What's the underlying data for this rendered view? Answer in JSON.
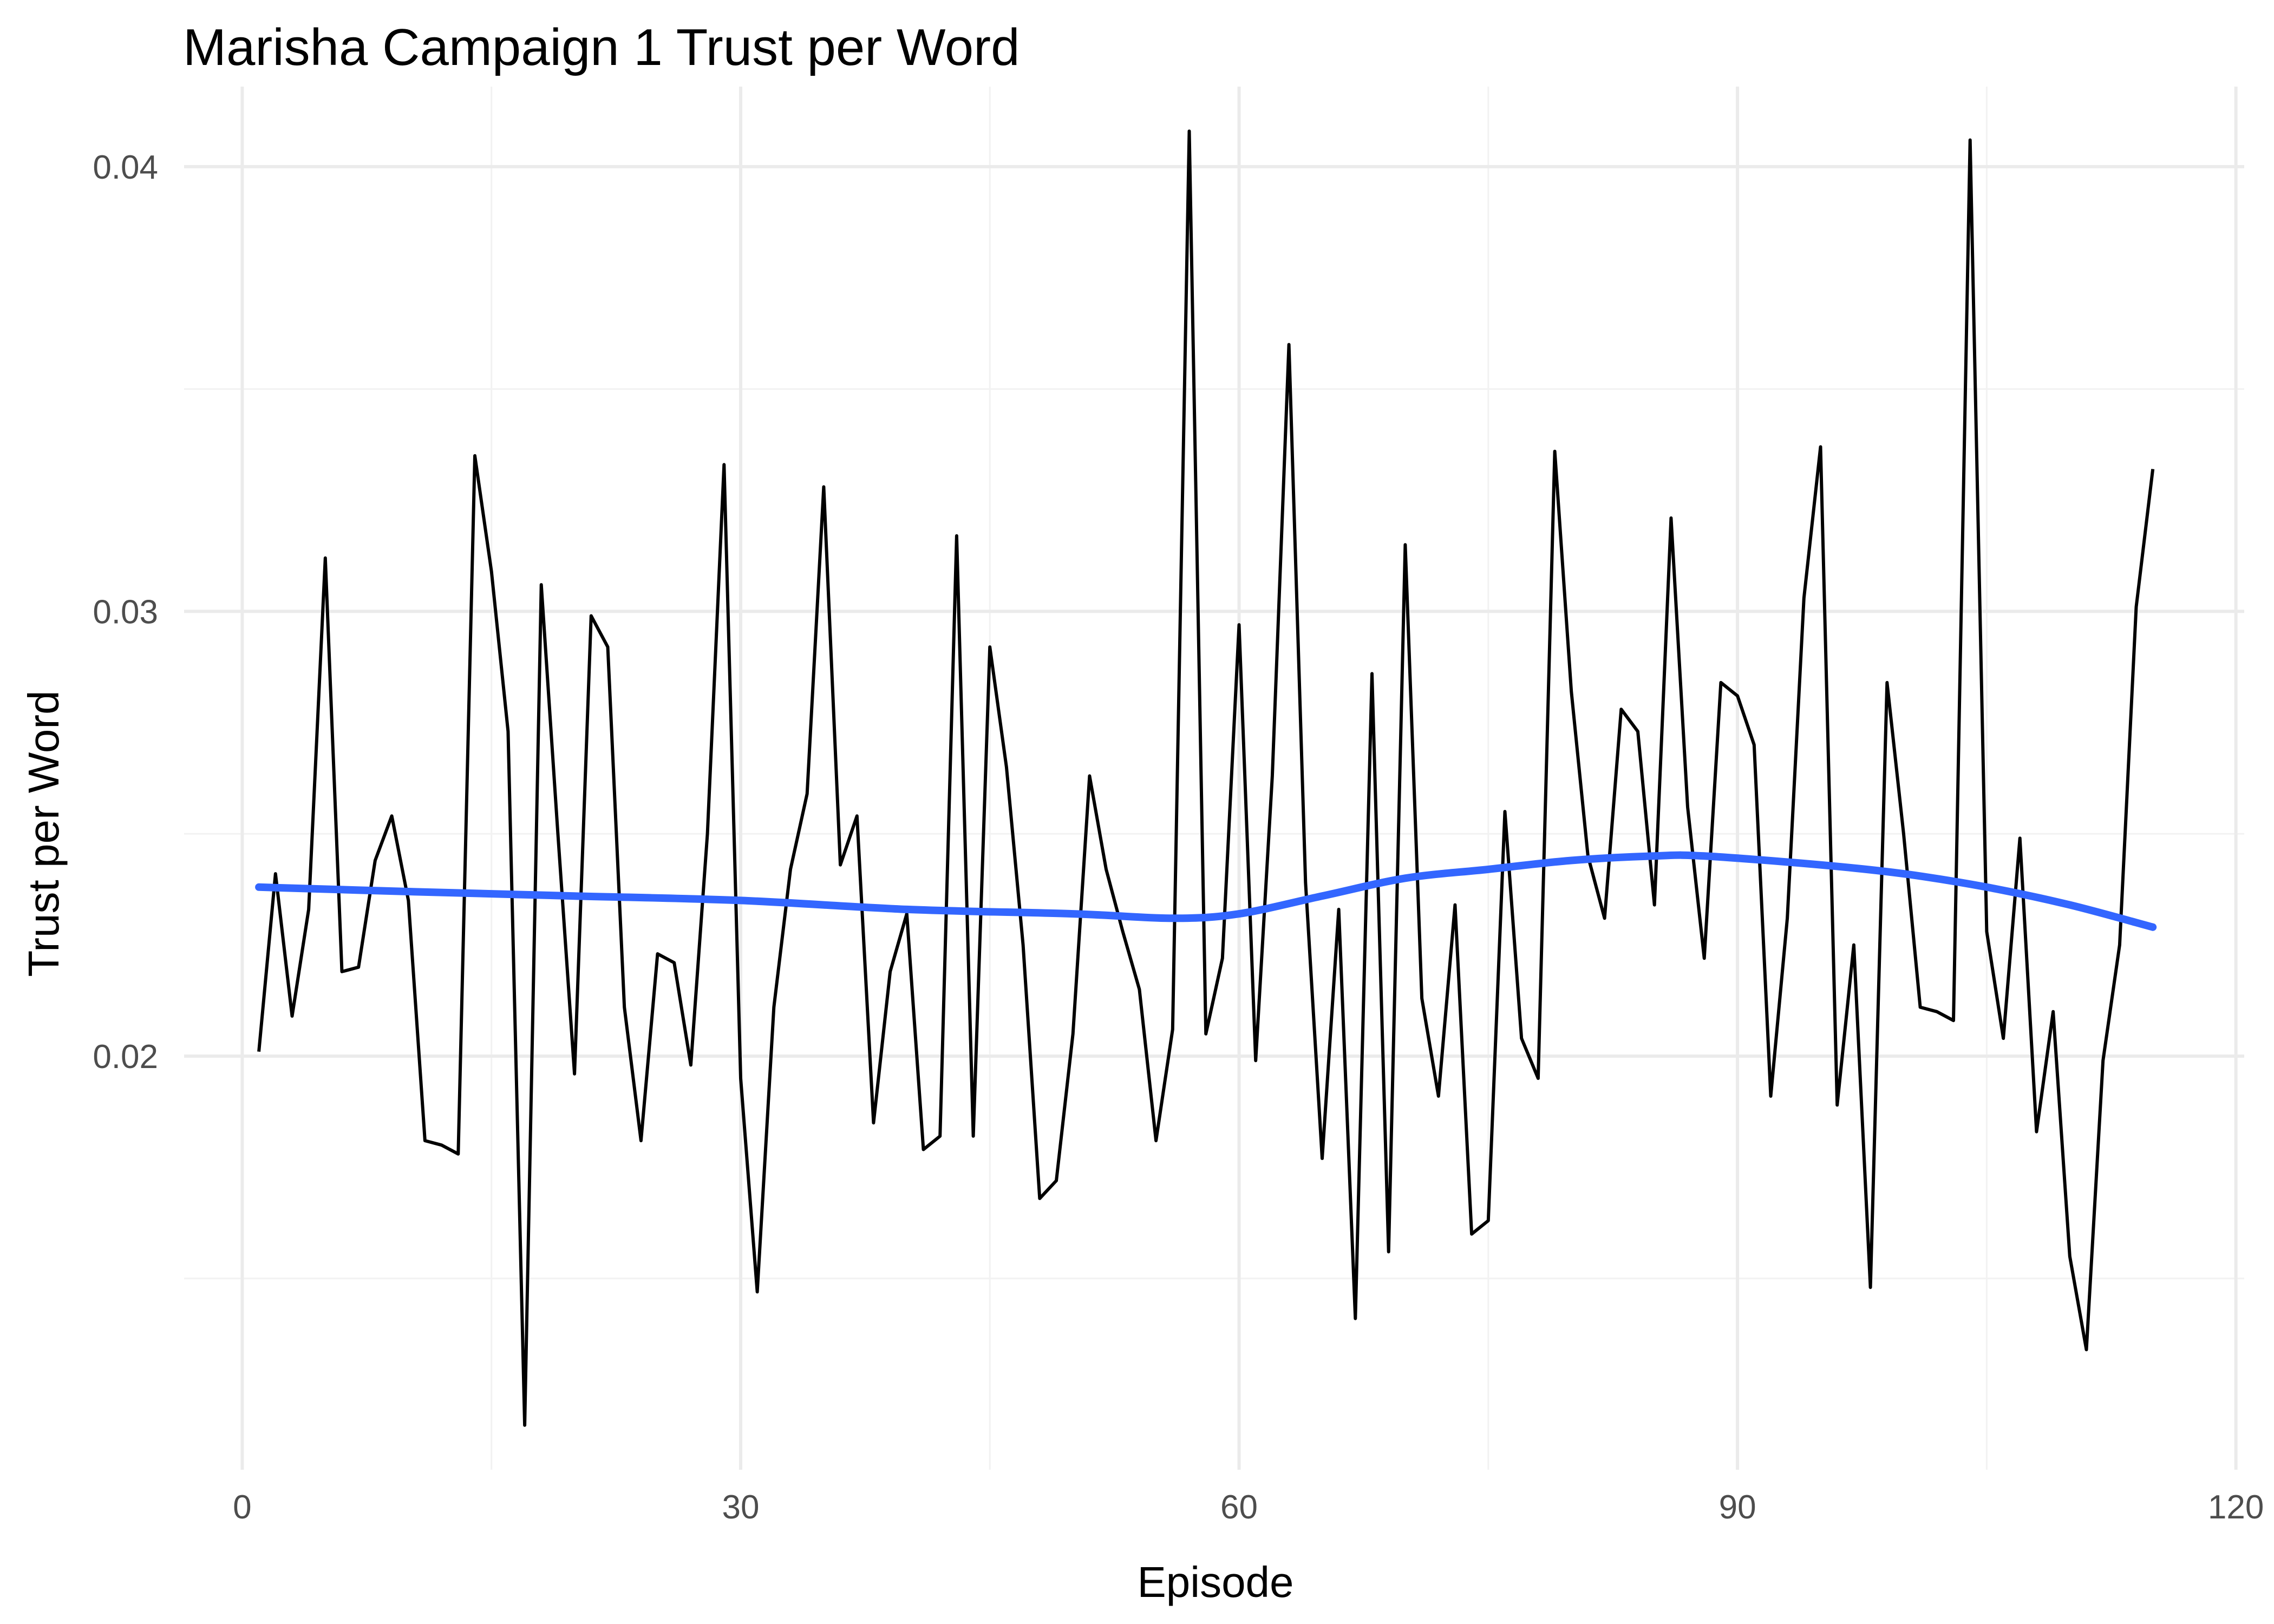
{
  "chart_data": {
    "type": "line",
    "title": "Marisha Campaign 1 Trust per Word",
    "xlabel": "Episode",
    "ylabel": "Trust per Word",
    "xlim": [
      -3.5,
      120.5
    ],
    "ylim": [
      0.0107,
      0.0418
    ],
    "x_ticks": [
      0,
      30,
      60,
      90,
      120
    ],
    "x_tick_labels": [
      "0",
      "30",
      "60",
      "90",
      "120"
    ],
    "y_ticks": [
      0.02,
      0.03,
      0.04
    ],
    "y_tick_labels": [
      "0.02",
      "0.03",
      "0.04"
    ],
    "x_minor_ticks": [
      15,
      45,
      75,
      105
    ],
    "y_minor_ticks": [
      0.015,
      0.025,
      0.035
    ],
    "grid": true,
    "legend": "none",
    "colors": {
      "raw": "#000000",
      "smooth": "#3366ff"
    },
    "series": [
      {
        "x": [
          1,
          2,
          3,
          4,
          5,
          6,
          7,
          8,
          9,
          10,
          11,
          12,
          13,
          14,
          15,
          16,
          17,
          18,
          19,
          20,
          21,
          22,
          23,
          24,
          25,
          26,
          27,
          28,
          29,
          30,
          31,
          32,
          33,
          34,
          35,
          36,
          37,
          38,
          39,
          40,
          41,
          42,
          43,
          44,
          45,
          46,
          47,
          48,
          49,
          50,
          51,
          52,
          53,
          54,
          55,
          56,
          57,
          58,
          59,
          60,
          61,
          62,
          63,
          64,
          65,
          66,
          67,
          68,
          69,
          70,
          71,
          72,
          73,
          74,
          75,
          76,
          77,
          78,
          79,
          80,
          81,
          82,
          83,
          84,
          85,
          86,
          87,
          88,
          89,
          90,
          91,
          92,
          93,
          94,
          95,
          96,
          97,
          98,
          99,
          100,
          101,
          102,
          103,
          104,
          105,
          106,
          107,
          108,
          109,
          110,
          111,
          112,
          113,
          114,
          115
        ],
        "y": [
          0.0201,
          0.0241,
          0.0209,
          0.0233,
          0.0312,
          0.0219,
          0.022,
          0.0244,
          0.0254,
          0.0235,
          0.0181,
          0.018,
          0.0178,
          0.0335,
          0.0309,
          0.0273,
          0.0117,
          0.0306,
          0.025,
          0.0196,
          0.0299,
          0.0292,
          0.0211,
          0.0181,
          0.0223,
          0.0221,
          0.0198,
          0.025,
          0.0333,
          0.0195,
          0.0147,
          0.0211,
          0.0242,
          0.0259,
          0.0328,
          0.0243,
          0.0254,
          0.0185,
          0.0219,
          0.0232,
          0.0179,
          0.0182,
          0.0317,
          0.0182,
          0.0292,
          0.0265,
          0.0225,
          0.0168,
          0.0172,
          0.0205,
          0.0263,
          0.0242,
          0.0228,
          0.0215,
          0.0181,
          0.0206,
          0.0408,
          0.0205,
          0.0222,
          0.0297,
          0.0199,
          0.0263,
          0.036,
          0.0239,
          0.0177,
          0.0233,
          0.0141,
          0.0286,
          0.0156,
          0.0315,
          0.0213,
          0.0191,
          0.0234,
          0.016,
          0.0163,
          0.0255,
          0.0204,
          0.0195,
          0.0336,
          0.0282,
          0.0245,
          0.0231,
          0.0278,
          0.0273,
          0.0234,
          0.0321,
          0.0256,
          0.0222,
          0.0284,
          0.0281,
          0.027,
          0.0191,
          0.0231,
          0.0303,
          0.0337,
          0.0189,
          0.0225,
          0.0148,
          0.0284,
          0.025,
          0.0211,
          0.021,
          0.0208,
          0.0406,
          0.0228,
          0.0204,
          0.0249,
          0.0183,
          0.021,
          0.0155,
          0.0134,
          0.0199,
          0.0225,
          0.0301,
          0.0332
        ]
      },
      {
        "x": [
          1,
          10,
          20,
          30,
          40,
          50,
          56,
          60,
          65,
          70,
          75,
          80,
          85,
          88,
          95,
          100,
          105,
          110,
          115
        ],
        "y": [
          0.0238,
          0.0237,
          0.0236,
          0.0235,
          0.0233,
          0.0232,
          0.0231,
          0.0232,
          0.0236,
          0.024,
          0.0242,
          0.0244,
          0.0245,
          0.0245,
          0.0243,
          0.0241,
          0.0238,
          0.0234,
          0.0229
        ]
      }
    ]
  }
}
